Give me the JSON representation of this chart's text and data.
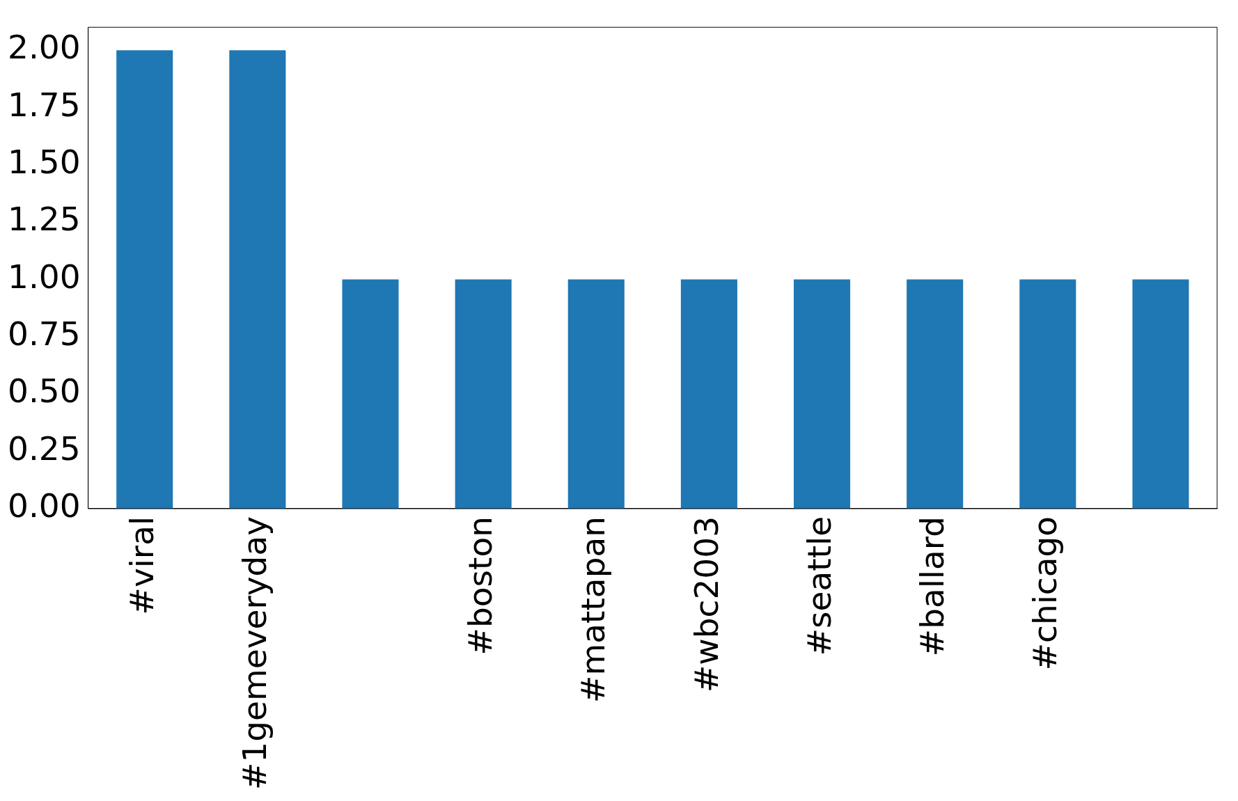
{
  "chart_data": {
    "type": "bar",
    "categories": [
      "#viral",
      "#1gemeveryday",
      null,
      "#boston",
      "#mattapan",
      "#wbc2003",
      "#seattle",
      "#ballard",
      "#chicago",
      null
    ],
    "values": [
      2,
      2,
      1,
      1,
      1,
      1,
      1,
      1,
      1,
      1
    ],
    "color": "#1f77b4",
    "ylim": [
      0,
      2.1
    ],
    "yticks": [
      {
        "value": 0,
        "label": "0.00"
      },
      {
        "value": 0.25,
        "label": "0.25"
      },
      {
        "value": 0.5,
        "label": "0.50"
      },
      {
        "value": 0.75,
        "label": "0.75"
      },
      {
        "value": 1,
        "label": "1.00"
      },
      {
        "value": 1.25,
        "label": "1.25"
      },
      {
        "value": 1.5,
        "label": "1.50"
      },
      {
        "value": 1.75,
        "label": "1.75"
      },
      {
        "value": 2,
        "label": "2.00"
      }
    ],
    "grid": false,
    "legend": false
  }
}
